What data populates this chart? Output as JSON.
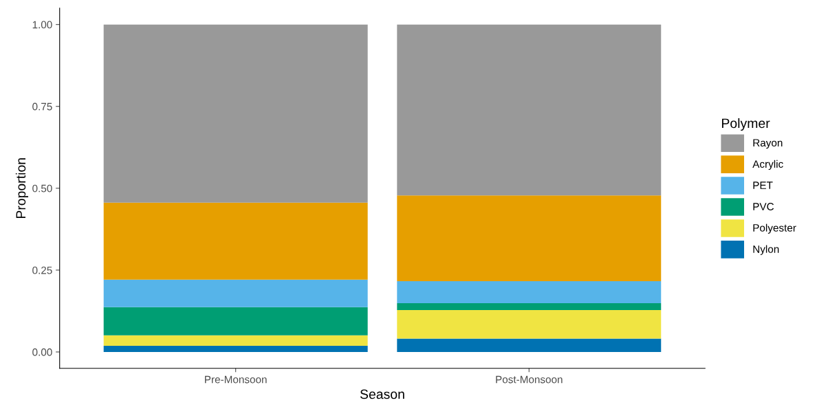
{
  "chart_data": {
    "type": "bar",
    "stacked": true,
    "xlabel": "Season",
    "ylabel": "Proportion",
    "legend_title": "Polymer",
    "legend": "right",
    "categories": [
      "Pre-Monsoon",
      "Post-Monsoon"
    ],
    "series": [
      {
        "name": "Nylon",
        "color": "#0072b2",
        "values": [
          0.019,
          0.041
        ]
      },
      {
        "name": "Polyester",
        "color": "#f0e442",
        "values": [
          0.032,
          0.087
        ]
      },
      {
        "name": "PVC",
        "color": "#009e73",
        "values": [
          0.086,
          0.021
        ]
      },
      {
        "name": "PET",
        "color": "#56b4e9",
        "values": [
          0.084,
          0.067
        ]
      },
      {
        "name": "Acrylic",
        "color": "#e69f00",
        "values": [
          0.235,
          0.262
        ]
      },
      {
        "name": "Rayon",
        "color": "#999999",
        "values": [
          0.544,
          0.522
        ]
      }
    ],
    "ylim": [
      -0.05,
      1.05
    ],
    "yticks": [
      {
        "value": 0,
        "label": "0.00"
      },
      {
        "value": 0.25,
        "label": "0.25"
      },
      {
        "value": 0.5,
        "label": "0.50"
      },
      {
        "value": 0.75,
        "label": "0.75"
      },
      {
        "value": 1,
        "label": "1.00"
      }
    ],
    "grid": false
  }
}
